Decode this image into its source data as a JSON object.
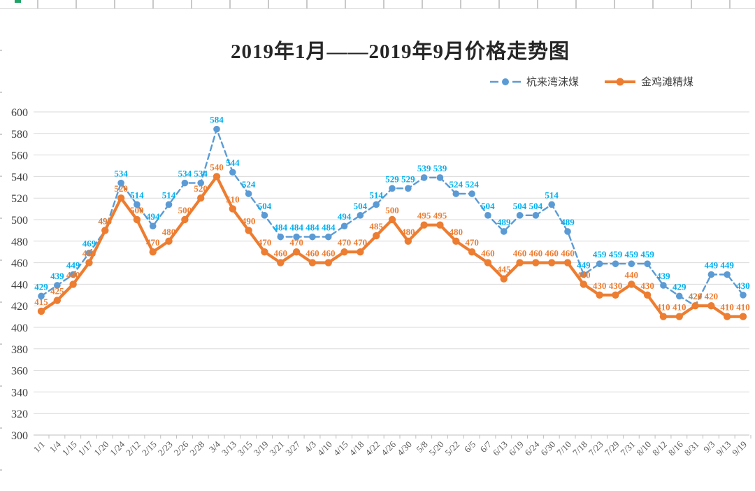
{
  "title": "2019年1月——2019年9月价格走势图",
  "chart_data": {
    "type": "line",
    "title": "2019年1月——2019年9月价格走势图",
    "categories": [
      "1/1",
      "1/4",
      "1/15",
      "1/17",
      "1/20",
      "1/24",
      "2/12",
      "2/15",
      "2/23",
      "2/26",
      "2/28",
      "3/4",
      "3/13",
      "3/15",
      "3/19",
      "3/21",
      "3/27",
      "4/3",
      "4/10",
      "4/15",
      "4/18",
      "4/22",
      "4/26",
      "4/30",
      "5/8",
      "5/20",
      "5/22",
      "6/5",
      "6/7",
      "6/13",
      "6/19",
      "6/24",
      "6/30",
      "7/10",
      "7/18",
      "7/23",
      "7/29",
      "7/31",
      "8/10",
      "8/12",
      "8/16",
      "8/31",
      "9/3",
      "9/13",
      "9/19"
    ],
    "series": [
      {
        "name": "杭来湾沫煤",
        "style": "dashed",
        "line_color": "#5B9BD5",
        "label_color": "#00B0F0",
        "values": [
          429,
          439,
          449,
          469,
          490,
          534,
          514,
          494,
          514,
          534,
          534,
          584,
          544,
          524,
          504,
          484,
          484,
          484,
          484,
          494,
          504,
          514,
          529,
          529,
          539,
          539,
          524,
          524,
          504,
          489,
          504,
          504,
          514,
          489,
          449,
          459,
          459,
          459,
          459,
          439,
          429,
          420,
          449,
          449,
          430
        ]
      },
      {
        "name": "金鸡滩精煤",
        "style": "solid",
        "line_color": "#ED7D31",
        "label_color": "#ED7D31",
        "values": [
          415,
          425,
          440,
          460,
          490,
          520,
          500,
          470,
          480,
          500,
          520,
          540,
          510,
          490,
          470,
          460,
          470,
          460,
          460,
          470,
          470,
          485,
          500,
          480,
          495,
          495,
          480,
          470,
          460,
          445,
          460,
          460,
          460,
          460,
          440,
          430,
          430,
          440,
          430,
          410,
          410,
          420,
          420,
          410,
          410
        ]
      }
    ],
    "ylim": [
      300,
      600
    ],
    "ytick_step": 20,
    "yticks": [
      300,
      320,
      340,
      360,
      380,
      400,
      420,
      440,
      460,
      480,
      500,
      520,
      540,
      560,
      580,
      600
    ],
    "grid": true,
    "data_labels": true,
    "legend_position": "top-right",
    "colors": {
      "gridline": "#D9D9D9",
      "axis_line": "#BFBFBF",
      "axis_text": "#595959",
      "title_text": "#262626"
    }
  }
}
